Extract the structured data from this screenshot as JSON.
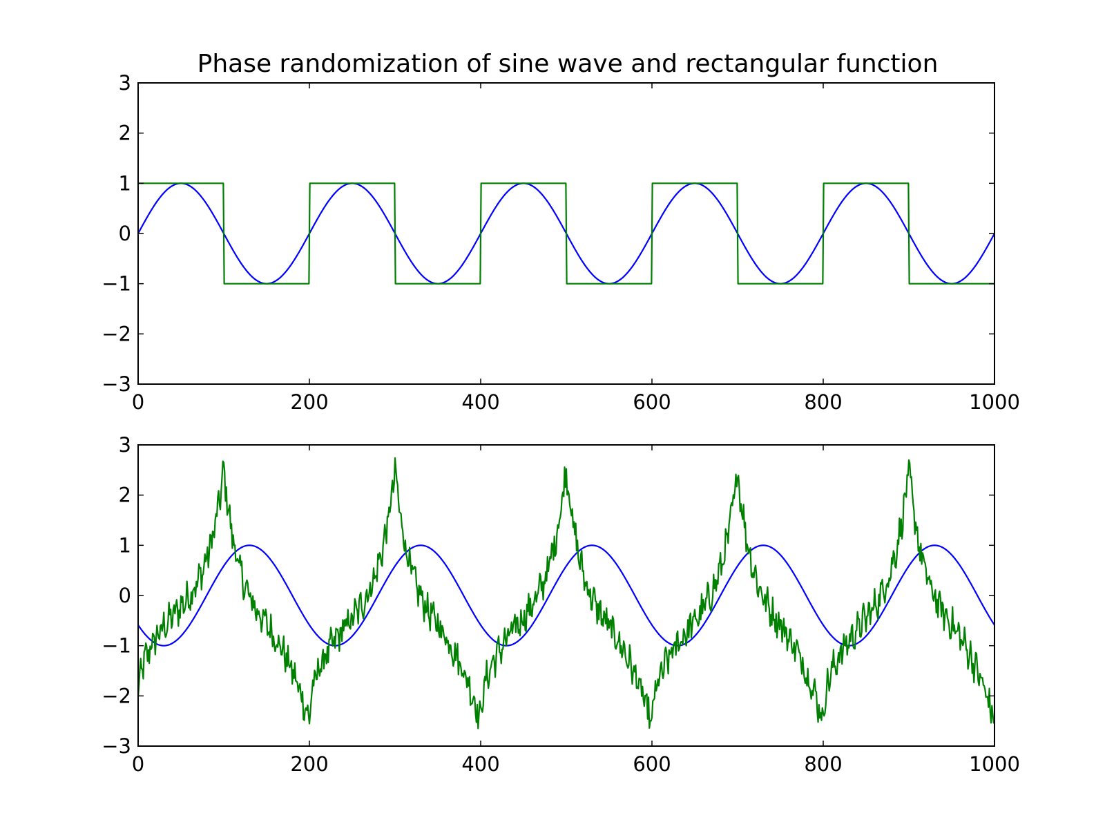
{
  "figure": {
    "title": "Phase randomization of sine wave and rectangular function"
  },
  "colors": {
    "sine": "#0000ff",
    "rect": "#008000",
    "axes": "#000000",
    "background": "#ffffff"
  },
  "chart_data": [
    {
      "type": "line",
      "title": "Phase randomization of sine wave and rectangular function",
      "xlim": [
        0,
        1000
      ],
      "ylim": [
        -3,
        3
      ],
      "x_ticks": [
        "0",
        "200",
        "400",
        "600",
        "800",
        "1000"
      ],
      "y_ticks": [
        "3",
        "2",
        "1",
        "0",
        "−1",
        "−2",
        "−3"
      ],
      "grid": false,
      "series": [
        {
          "color": "#0000ff",
          "shape": "sine",
          "amplitude": 1,
          "period": 200,
          "phase_shift": 0,
          "x_range": [
            0,
            1000
          ]
        },
        {
          "color": "#008000",
          "shape": "square",
          "amplitude": 1,
          "period": 200,
          "x_range": [
            0,
            1000
          ]
        }
      ]
    },
    {
      "type": "line",
      "xlim": [
        0,
        1000
      ],
      "ylim": [
        -3,
        3
      ],
      "x_ticks": [
        "0",
        "200",
        "400",
        "600",
        "800",
        "1000"
      ],
      "y_ticks": [
        "3",
        "2",
        "1",
        "0",
        "−1",
        "−2",
        "−3"
      ],
      "grid": false,
      "series": [
        {
          "color": "#0000ff",
          "shape": "sine",
          "amplitude": 1,
          "period": 200,
          "phase_shift": 80,
          "x_range": [
            0,
            1000
          ]
        },
        {
          "color": "#008000",
          "shape": "noisy-sawtooth",
          "period": 200,
          "peak_values": [
            {
              "x": 0,
              "y": -2.1
            },
            {
              "x": 100,
              "y": 2.5
            },
            {
              "x": 200,
              "y": -2.5
            },
            {
              "x": 300,
              "y": 2.5
            },
            {
              "x": 400,
              "y": -2.5
            },
            {
              "x": 500,
              "y": 2.55
            },
            {
              "x": 600,
              "y": -2.6
            },
            {
              "x": 700,
              "y": 2.5
            },
            {
              "x": 800,
              "y": -2.5
            },
            {
              "x": 900,
              "y": 2.5
            },
            {
              "x": 1000,
              "y": -2.5
            }
          ],
          "x_range": [
            0,
            1000
          ]
        }
      ]
    }
  ]
}
